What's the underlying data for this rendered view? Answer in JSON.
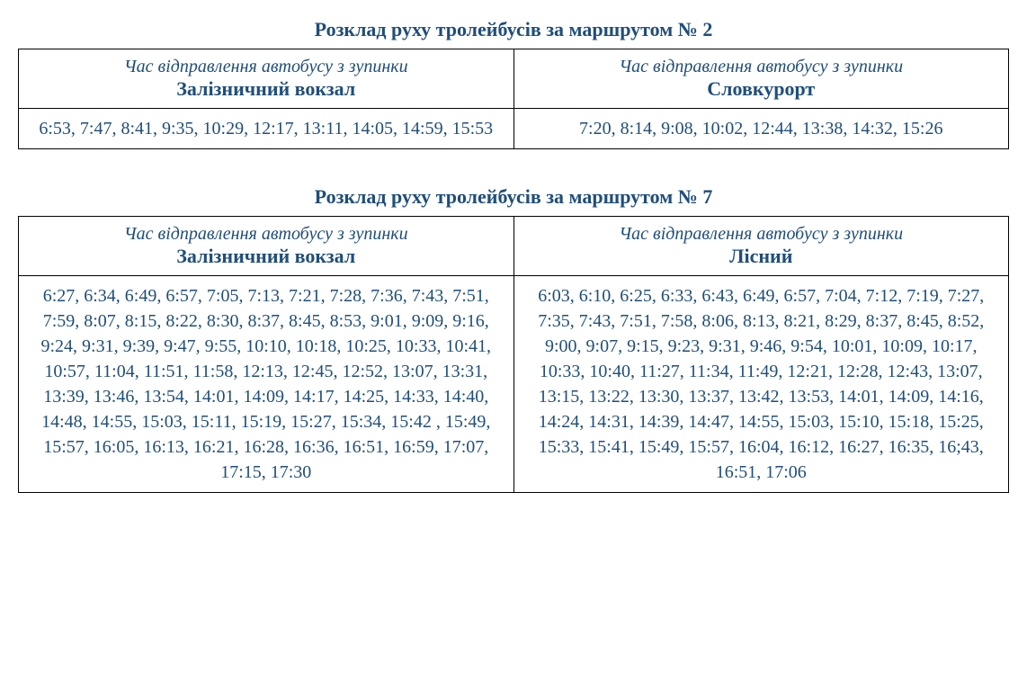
{
  "schedules": [
    {
      "title": "Розклад руху тролейбусів за маршрутом № 2",
      "columns": [
        {
          "subtitle": "Час відправлення автобусу з зупинки",
          "location": "Залізничний вокзал",
          "times": "6:53, 7:47, 8:41, 9:35, 10:29, 12:17, 13:11, 14:05, 14:59, 15:53"
        },
        {
          "subtitle": "Час відправлення автобусу з зупинки",
          "location": "Словкурорт",
          "times": "7:20, 8:14, 9:08, 10:02, 12:44, 13:38, 14:32, 15:26"
        }
      ]
    },
    {
      "title": "Розклад руху тролейбусів за маршрутом № 7",
      "columns": [
        {
          "subtitle": "Час відправлення автобусу з зупинки",
          "location": "Залізничний вокзал",
          "times": "6:27, 6:34, 6:49, 6:57, 7:05, 7:13, 7:21, 7:28, 7:36, 7:43, 7:51, 7:59, 8:07, 8:15, 8:22,  8:30, 8:37, 8:45, 8:53, 9:01, 9:09, 9:16, 9:24, 9:31, 9:39, 9:47, 9:55, 10:10, 10:18, 10:25, 10:33, 10:41,  10:57, 11:04, 11:51, 11:58, 12:13, 12:45, 12:52, 13:07, 13:31, 13:39, 13:46, 13:54, 14:01, 14:09, 14:17, 14:25, 14:33, 14:40, 14:48, 14:55, 15:03, 15:11, 15:19, 15:27, 15:34, 15:42 , 15:49, 15:57, 16:05, 16:13, 16:21, 16:28, 16:36, 16:51, 16:59, 17:07, 17:15, 17:30"
        },
        {
          "subtitle": "Час відправлення автобусу з зупинки",
          "location": "Лісний",
          "times": "6:03, 6:10, 6:25, 6:33, 6:43, 6:49, 6:57, 7:04, 7:12, 7:19, 7:27, 7:35, 7:43, 7:51, 7:58, 8:06, 8:13, 8:21, 8:29, 8:37, 8:45, 8:52, 9:00, 9:07, 9:15, 9:23, 9:31, 9:46, 9:54, 10:01, 10:09, 10:17, 10:33, 10:40, 11:27, 11:34, 11:49, 12:21, 12:28, 12:43, 13:07, 13:15, 13:22, 13:30, 13:37, 13:42, 13:53, 14:01, 14:09, 14:16, 14:24, 14:31, 14:39, 14:47, 14:55, 15:03, 15:10, 15:18, 15:25, 15:33, 15:41, 15:49, 15:57, 16:04, 16:12, 16:27, 16:35, 16;43, 16:51, 17:06"
        }
      ]
    }
  ],
  "colors": {
    "text_primary": "#1f4e79",
    "border": "#000000",
    "background": "#ffffff"
  },
  "typography": {
    "title_fontsize": 22,
    "subtitle_fontsize": 20,
    "location_fontsize": 22,
    "times_fontsize": 20
  }
}
